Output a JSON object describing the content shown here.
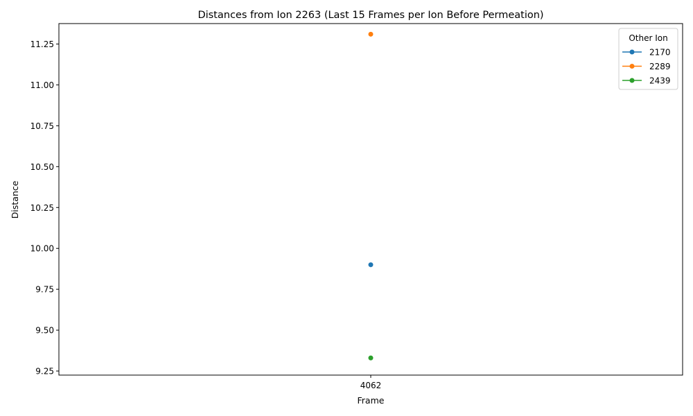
{
  "chart_data": {
    "type": "line",
    "title": "Distances from Ion 2263 (Last 15 Frames per Ion Before Permeation)",
    "xlabel": "Frame",
    "ylabel": "Distance",
    "categories": [
      "4062"
    ],
    "ylim": [
      9.225,
      11.375
    ],
    "yticks": [
      "9.25",
      "9.50",
      "9.75",
      "10.00",
      "10.25",
      "10.50",
      "10.75",
      "11.00",
      "11.25"
    ],
    "legend_title": "Other Ion",
    "legend_position": "top-right",
    "grid": false,
    "series": [
      {
        "name": "2170",
        "color": "#1f77b4",
        "values": [
          9.9
        ]
      },
      {
        "name": "2289",
        "color": "#ff7f0e",
        "values": [
          11.31
        ]
      },
      {
        "name": "2439",
        "color": "#2ca02c",
        "values": [
          9.33
        ]
      }
    ]
  }
}
